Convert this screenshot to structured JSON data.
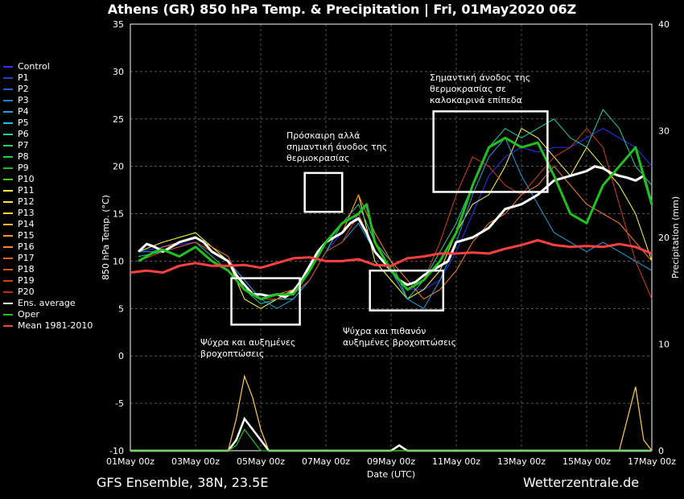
{
  "title": "Athens  (GR)  850 hPa Temp. & Precipitation | Fri, 01May2020 06Z",
  "footer_left": "GFS Ensemble, 38N, 23.5E",
  "footer_right": "Wetterzentrale.de",
  "legend": [
    {
      "label": "Control",
      "color": "#3030ff"
    },
    {
      "label": "P1",
      "color": "#2040d0"
    },
    {
      "label": "P2",
      "color": "#2060e0"
    },
    {
      "label": "P3",
      "color": "#2080e0"
    },
    {
      "label": "P4",
      "color": "#20a0e0"
    },
    {
      "label": "P5",
      "color": "#20c0e0"
    },
    {
      "label": "P6",
      "color": "#20d0a0"
    },
    {
      "label": "P7",
      "color": "#20d070"
    },
    {
      "label": "P8",
      "color": "#20d040"
    },
    {
      "label": "P9",
      "color": "#20c020"
    },
    {
      "label": "P10",
      "color": "#40d020"
    },
    {
      "label": "P11",
      "color": "#ffff40"
    },
    {
      "label": "P12",
      "color": "#ffe040"
    },
    {
      "label": "P13",
      "color": "#ffd040"
    },
    {
      "label": "P14",
      "color": "#ffb040"
    },
    {
      "label": "P15",
      "color": "#ff9030"
    },
    {
      "label": "P16",
      "color": "#ff8030"
    },
    {
      "label": "P17",
      "color": "#f06020"
    },
    {
      "label": "P18",
      "color": "#e05020"
    },
    {
      "label": "P19",
      "color": "#d04010"
    },
    {
      "label": "P20",
      "color": "#c03010"
    },
    {
      "label": "Ens. average",
      "color": "#ffffff"
    },
    {
      "label": "Oper",
      "color": "#20c020"
    },
    {
      "label": "Mean 1981-2010",
      "color": "#ff4040"
    }
  ],
  "annotations": [
    {
      "lines": [
        "Ψύχρα και αυξημένες",
        "βροχοπτώσεις"
      ]
    },
    {
      "lines": [
        "Πρόσκαιρη αλλά",
        "σημαντική άνοδος της",
        "θερμοκρασίας"
      ]
    },
    {
      "lines": [
        "Ψύχρα και πιθανόν",
        "αυξημένες βροχοπτώσεις"
      ]
    },
    {
      "lines": [
        "Σημαντική άνοδος της",
        "θερμοκρασίας σε",
        "καλοκαιρινά επίπεδα"
      ]
    }
  ],
  "chart_data": {
    "type": "line",
    "xlabel": "Date (UTC)",
    "ylabel": "850 hPa Temp. (°C)",
    "y2label": "Precipitation (mm)",
    "ylim": [
      -10,
      35
    ],
    "y2lim": [
      0,
      40
    ],
    "yticks": [
      -10,
      -5,
      0,
      5,
      10,
      15,
      20,
      25,
      30,
      35
    ],
    "y2ticks": [
      0,
      10,
      20,
      30,
      40
    ],
    "xticks": [
      "01May 00z",
      "03May 00z",
      "05May 00z",
      "07May 00z",
      "09May 00z",
      "11May 00z",
      "13May 00z",
      "15May 00z",
      "17May 00z"
    ],
    "xlim_days": [
      0,
      16
    ],
    "grid": true,
    "series": [
      {
        "name": "Ens. average",
        "color": "#ffffff",
        "x": [
          0.25,
          0.5,
          0.75,
          1,
          1.5,
          2,
          2.25,
          2.5,
          2.75,
          3,
          3.25,
          3.5,
          3.75,
          4,
          4.25,
          4.5,
          4.75,
          5,
          5.25,
          5.5,
          5.75,
          6,
          6.25,
          6.5,
          6.75,
          7,
          7.25,
          7.5,
          7.75,
          8,
          8.25,
          8.5,
          8.75,
          9,
          9.25,
          9.5,
          9.75,
          10,
          10.5,
          11,
          11.5,
          12,
          12.5,
          13,
          13.5,
          14,
          14.25,
          14.5,
          14.75,
          15,
          15.25,
          15.5,
          15.75,
          16
        ],
        "y": [
          11,
          11.8,
          11.5,
          11,
          12,
          12.5,
          12,
          11,
          10.5,
          10,
          8.5,
          7.5,
          6.5,
          6.5,
          6.3,
          6.5,
          6.2,
          6.8,
          8,
          9.5,
          11,
          12,
          12.5,
          13,
          14,
          14.5,
          13,
          11,
          10,
          9,
          8,
          7.5,
          7.8,
          8.5,
          9,
          9.5,
          10,
          12,
          12.5,
          13.5,
          15.5,
          16,
          17,
          18.5,
          19,
          19.5,
          20,
          19.8,
          19.3,
          19,
          18.8,
          18.5,
          19,
          16
        ]
      },
      {
        "name": "Oper",
        "color": "#20c020",
        "x": [
          0.25,
          0.75,
          1,
          1.5,
          2,
          2.5,
          3,
          3.5,
          4,
          4.5,
          5,
          5.5,
          6,
          6.5,
          7,
          7.25,
          7.5,
          8,
          8.5,
          9,
          9.5,
          10,
          10.5,
          11,
          11.5,
          12,
          12.5,
          13,
          13.5,
          14,
          14.5,
          15,
          15.5,
          16
        ],
        "y": [
          10,
          11,
          11.2,
          10.5,
          11.5,
          10,
          9,
          7,
          6,
          6.5,
          6.5,
          9,
          12,
          14,
          15,
          16,
          12,
          9,
          7,
          8,
          10,
          13,
          18,
          22,
          23,
          22,
          22.5,
          19,
          15,
          14,
          18,
          20,
          22,
          16
        ]
      },
      {
        "name": "Control",
        "color": "#3030ff",
        "x": [
          0.25,
          1,
          2,
          3,
          3.5,
          4,
          4.5,
          5,
          5.5,
          6,
          6.5,
          7,
          7.5,
          8,
          8.5,
          9,
          9.5,
          10,
          10.5,
          11,
          11.5,
          12,
          12.5,
          13,
          13.5,
          14,
          14.5,
          15,
          15.5,
          16
        ],
        "y": [
          11,
          11.5,
          12,
          10,
          8,
          6,
          6,
          6.5,
          8,
          11,
          13,
          15,
          11,
          9,
          7,
          7,
          8,
          11,
          15,
          19,
          21,
          22,
          21.5,
          22,
          22,
          23,
          24,
          23,
          22,
          20
        ]
      },
      {
        "name": "P11",
        "color": "#ffff40",
        "x": [
          0.25,
          1,
          2,
          3,
          3.5,
          4,
          4.5,
          5,
          5.5,
          6,
          6.5,
          7,
          7.5,
          8,
          8.5,
          9,
          9.5,
          10,
          10.5,
          11,
          11.5,
          12,
          12.5,
          13,
          13.5,
          14,
          14.5,
          15,
          15.5,
          16
        ],
        "y": [
          11,
          12,
          13,
          10,
          6,
          5,
          6,
          7,
          9,
          12,
          13,
          17,
          10,
          8,
          6,
          7,
          9,
          13,
          16,
          17,
          20,
          24,
          23,
          21,
          19,
          22,
          20,
          18,
          15,
          10
        ]
      },
      {
        "name": "P6",
        "color": "#20d0a0",
        "x": [
          0.25,
          1,
          2,
          3,
          3.5,
          4,
          4.5,
          5,
          5.5,
          6,
          6.5,
          7,
          7.5,
          8,
          8.5,
          9,
          9.5,
          10,
          10.5,
          11,
          11.5,
          12,
          12.5,
          13,
          13.5,
          14,
          14.5,
          15,
          15.5,
          16
        ],
        "y": [
          10.5,
          11,
          12,
          9,
          7,
          5.5,
          6,
          6,
          8,
          11,
          14,
          16,
          12,
          10,
          6,
          8,
          11,
          14,
          18,
          22,
          24,
          23,
          24,
          25,
          23,
          22,
          26,
          24,
          20,
          18
        ]
      },
      {
        "name": "P16",
        "color": "#ff8030",
        "x": [
          0.25,
          1,
          2,
          3,
          3.5,
          4,
          4.5,
          5,
          5.5,
          6,
          6.5,
          7,
          7.5,
          8,
          8.5,
          9,
          9.5,
          10,
          10.5,
          11,
          11.5,
          12,
          12.5,
          13,
          13.5,
          14,
          14.5,
          15,
          15.5,
          16
        ],
        "y": [
          10,
          11.5,
          12.5,
          10.5,
          7,
          6,
          6.5,
          7,
          9,
          12,
          13,
          17,
          13,
          10,
          8,
          6,
          7,
          9,
          12,
          14,
          15,
          17,
          18,
          20,
          18,
          16,
          15,
          14,
          12,
          10
        ]
      },
      {
        "name": "P4",
        "color": "#20a0e0",
        "x": [
          0.25,
          1,
          2,
          3,
          3.5,
          4,
          4.5,
          5,
          5.5,
          6,
          6.5,
          7,
          7.5,
          8,
          8.5,
          9,
          9.5,
          10,
          10.5,
          11,
          11.5,
          12,
          12.5,
          13,
          13.5,
          14,
          14.5,
          15,
          15.5,
          16
        ],
        "y": [
          11,
          11,
          12,
          10,
          8,
          6,
          5,
          6,
          8,
          11,
          12,
          14,
          11,
          9,
          6,
          5,
          8,
          12,
          17,
          21,
          23,
          19,
          16,
          13,
          12,
          11,
          12,
          11,
          10,
          9
        ]
      },
      {
        "name": "P19",
        "color": "#d04010",
        "x": [
          0.25,
          1,
          2,
          3,
          3.5,
          4,
          4.5,
          5,
          5.5,
          6,
          6.5,
          7,
          7.5,
          8,
          8.5,
          9,
          9.5,
          10,
          10.5,
          11,
          11.5,
          12,
          12.5,
          13,
          13.5,
          14,
          14.5,
          15,
          15.5,
          16
        ],
        "y": [
          10,
          11,
          12,
          10,
          7.5,
          6,
          6,
          6.5,
          8,
          11,
          12,
          15,
          11,
          9,
          7,
          8,
          12,
          17,
          21,
          20,
          18,
          17,
          19,
          21,
          22,
          24,
          22,
          16,
          10,
          6
        ]
      },
      {
        "name": "Mean 1981-2010",
        "color": "#ff4040",
        "x": [
          0,
          0.5,
          1,
          1.5,
          2,
          2.5,
          3,
          3.5,
          4,
          4.5,
          5,
          5.5,
          6,
          6.5,
          7,
          7.5,
          8,
          8.5,
          9,
          9.5,
          10,
          10.5,
          11,
          11.5,
          12,
          12.5,
          13,
          13.5,
          14,
          14.5,
          15,
          15.5,
          16
        ],
        "y": [
          8.8,
          9,
          8.8,
          9.5,
          9.8,
          9.5,
          9.5,
          9.6,
          9.3,
          9.8,
          10.3,
          10.4,
          10,
          10,
          10.2,
          9.6,
          9.5,
          10.3,
          10.5,
          10.8,
          10.8,
          10.9,
          10.8,
          11.3,
          11.7,
          12.2,
          11.7,
          11.5,
          11.6,
          11.5,
          11.8,
          11.5,
          10.8
        ]
      }
    ],
    "precipitation": {
      "y_axis": "right",
      "series": [
        {
          "name": "Ens. average",
          "color": "#ffffff",
          "x": [
            0,
            3,
            3.25,
            3.5,
            3.75,
            4,
            4.25,
            4.5,
            8,
            8.25,
            8.5,
            16
          ],
          "y": [
            0,
            0,
            1,
            3,
            2,
            1,
            0,
            0,
            0,
            0.5,
            0,
            0
          ]
        },
        {
          "name": "P13",
          "color": "#ffd040",
          "x": [
            0,
            3,
            3.25,
            3.5,
            3.75,
            4,
            4.25,
            4.5,
            15,
            15.5,
            15.75,
            16
          ],
          "y": [
            0,
            0,
            3,
            7,
            5,
            2,
            0,
            0,
            0,
            6,
            1,
            0
          ]
        },
        {
          "name": "Oper",
          "color": "#20c020",
          "x": [
            0,
            3,
            3.25,
            3.5,
            3.75,
            4,
            16
          ],
          "y": [
            0,
            0,
            0.5,
            2,
            1,
            0,
            0
          ]
        }
      ]
    }
  }
}
